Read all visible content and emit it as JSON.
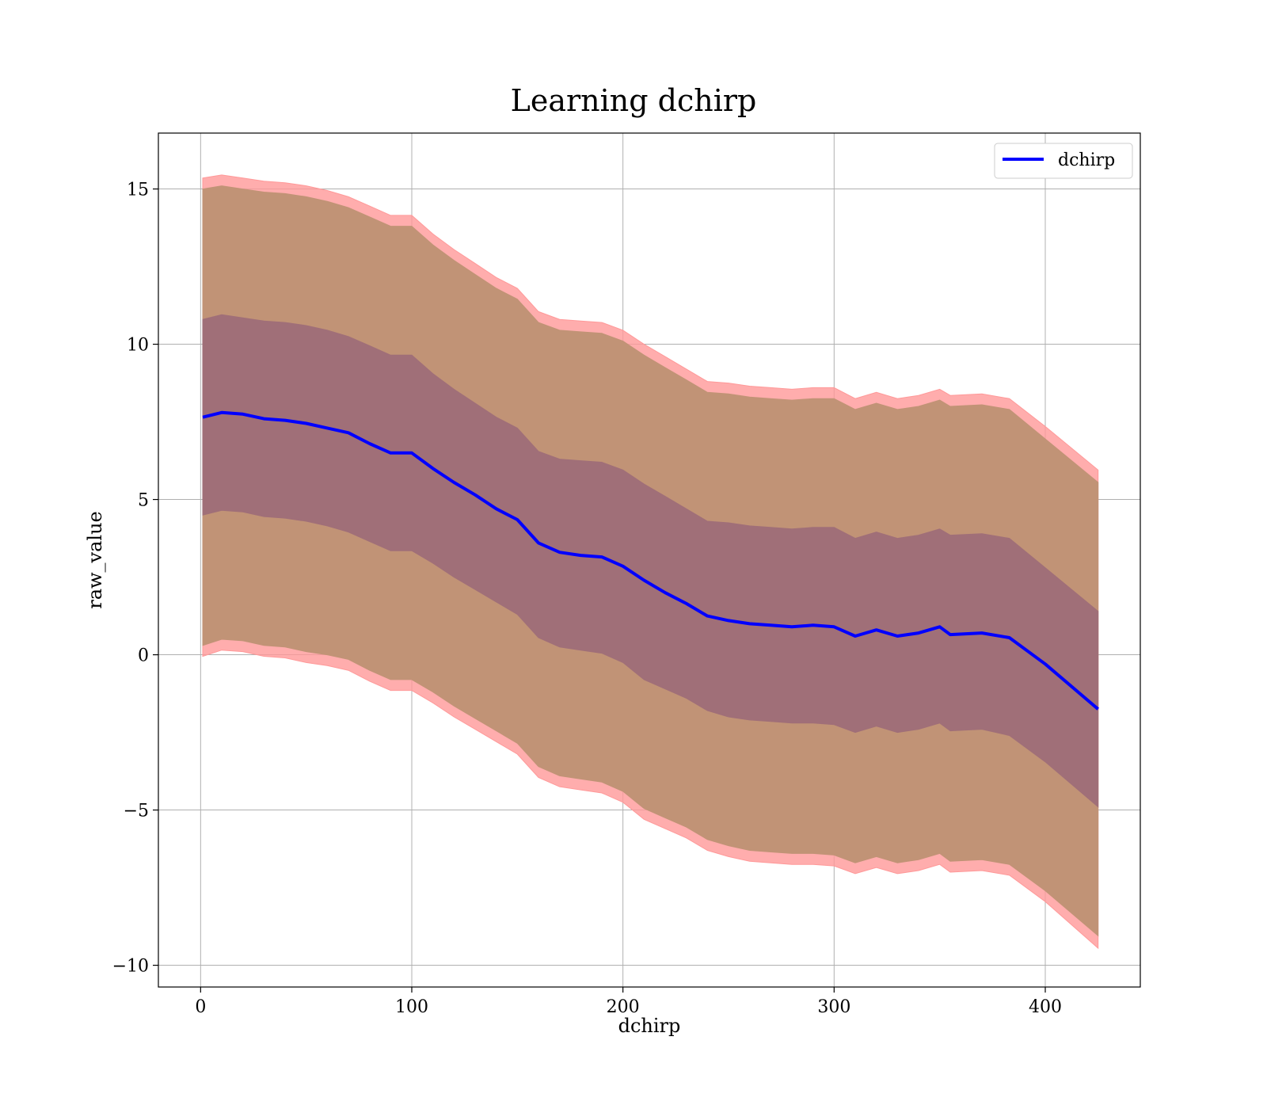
{
  "chart_data": {
    "type": "line",
    "title": "Learning dchirp",
    "xlabel": "dchirp",
    "ylabel": "raw_value",
    "xlim": [
      -20,
      445
    ],
    "ylim": [
      -10.7,
      16.8
    ],
    "x_ticks": [
      0,
      100,
      200,
      300,
      400
    ],
    "x_tick_labels": [
      "0",
      "100",
      "200",
      "300",
      "400"
    ],
    "y_ticks": [
      -10,
      -5,
      0,
      5,
      10,
      15
    ],
    "y_tick_labels": [
      "−10",
      "−5",
      "0",
      "5",
      "10",
      "15"
    ],
    "grid": true,
    "legend_position": "top-right",
    "colors": {
      "line": "#0000ff",
      "outer_band": "#ff9999",
      "middle_band": "#c19376",
      "inner_band": "#a06f78"
    },
    "x": [
      1,
      10,
      20,
      30,
      40,
      50,
      60,
      70,
      80,
      90,
      100,
      110,
      120,
      130,
      140,
      150,
      160,
      170,
      180,
      190,
      200,
      210,
      220,
      230,
      240,
      250,
      260,
      270,
      280,
      290,
      300,
      310,
      320,
      330,
      340,
      350,
      355,
      370,
      383,
      400,
      425
    ],
    "series": [
      {
        "name": "dchirp",
        "values": [
          7.65,
          7.8,
          7.75,
          7.6,
          7.55,
          7.45,
          7.3,
          7.15,
          6.8,
          6.5,
          6.5,
          6.0,
          5.55,
          5.15,
          4.7,
          4.35,
          3.6,
          3.3,
          3.2,
          3.15,
          2.85,
          2.4,
          2.0,
          1.65,
          1.25,
          1.1,
          1.0,
          0.95,
          0.9,
          0.95,
          0.9,
          0.6,
          0.8,
          0.6,
          0.7,
          0.9,
          0.65,
          0.7,
          0.55,
          -0.3,
          -1.75
        ]
      }
    ],
    "bands": [
      {
        "upper": [
          15.35,
          15.45,
          15.35,
          15.25,
          15.2,
          15.1,
          14.95,
          14.75,
          14.45,
          14.15,
          14.15,
          13.55,
          13.05,
          12.6,
          12.15,
          11.8,
          11.05,
          10.8,
          10.75,
          10.7,
          10.45,
          10.0,
          9.6,
          9.2,
          8.8,
          8.75,
          8.65,
          8.6,
          8.55,
          8.6,
          8.6,
          8.25,
          8.45,
          8.25,
          8.35,
          8.55,
          8.35,
          8.4,
          8.25,
          7.35,
          5.95
        ],
        "lower": [
          -0.05,
          0.15,
          0.1,
          -0.05,
          -0.1,
          -0.25,
          -0.35,
          -0.5,
          -0.85,
          -1.15,
          -1.15,
          -1.55,
          -2.0,
          -2.4,
          -2.8,
          -3.2,
          -3.95,
          -4.25,
          -4.35,
          -4.45,
          -4.75,
          -5.3,
          -5.6,
          -5.9,
          -6.3,
          -6.5,
          -6.65,
          -6.7,
          -6.75,
          -6.75,
          -6.8,
          -7.05,
          -6.85,
          -7.05,
          -6.95,
          -6.75,
          -7.0,
          -6.95,
          -7.1,
          -7.95,
          -9.45
        ]
      },
      {
        "upper": [
          15.0,
          15.1,
          15.0,
          14.9,
          14.85,
          14.75,
          14.6,
          14.4,
          14.1,
          13.8,
          13.8,
          13.2,
          12.7,
          12.25,
          11.8,
          11.45,
          10.7,
          10.45,
          10.4,
          10.35,
          10.1,
          9.65,
          9.25,
          8.85,
          8.45,
          8.4,
          8.3,
          8.25,
          8.2,
          8.25,
          8.25,
          7.9,
          8.1,
          7.9,
          8.0,
          8.2,
          8.0,
          8.05,
          7.9,
          6.95,
          5.55
        ],
        "lower": [
          0.3,
          0.5,
          0.45,
          0.3,
          0.25,
          0.1,
          0.0,
          -0.15,
          -0.5,
          -0.8,
          -0.8,
          -1.2,
          -1.65,
          -2.05,
          -2.45,
          -2.85,
          -3.6,
          -3.9,
          -4.0,
          -4.1,
          -4.4,
          -4.95,
          -5.25,
          -5.55,
          -5.95,
          -6.15,
          -6.3,
          -6.35,
          -6.4,
          -6.4,
          -6.45,
          -6.7,
          -6.5,
          -6.7,
          -6.6,
          -6.4,
          -6.65,
          -6.6,
          -6.75,
          -7.6,
          -9.05
        ]
      },
      {
        "upper": [
          10.8,
          10.95,
          10.85,
          10.75,
          10.7,
          10.6,
          10.45,
          10.25,
          9.95,
          9.65,
          9.65,
          9.05,
          8.55,
          8.1,
          7.65,
          7.3,
          6.55,
          6.3,
          6.25,
          6.2,
          5.95,
          5.5,
          5.1,
          4.7,
          4.3,
          4.25,
          4.15,
          4.1,
          4.05,
          4.1,
          4.1,
          3.75,
          3.95,
          3.75,
          3.85,
          4.05,
          3.85,
          3.9,
          3.75,
          2.8,
          1.4
        ],
        "lower": [
          4.5,
          4.65,
          4.6,
          4.45,
          4.4,
          4.3,
          4.15,
          3.95,
          3.65,
          3.35,
          3.35,
          2.95,
          2.5,
          2.1,
          1.7,
          1.3,
          0.55,
          0.25,
          0.15,
          0.05,
          -0.25,
          -0.8,
          -1.1,
          -1.4,
          -1.8,
          -2.0,
          -2.1,
          -2.15,
          -2.2,
          -2.2,
          -2.25,
          -2.5,
          -2.3,
          -2.5,
          -2.4,
          -2.2,
          -2.45,
          -2.4,
          -2.6,
          -3.45,
          -4.9
        ]
      }
    ]
  }
}
